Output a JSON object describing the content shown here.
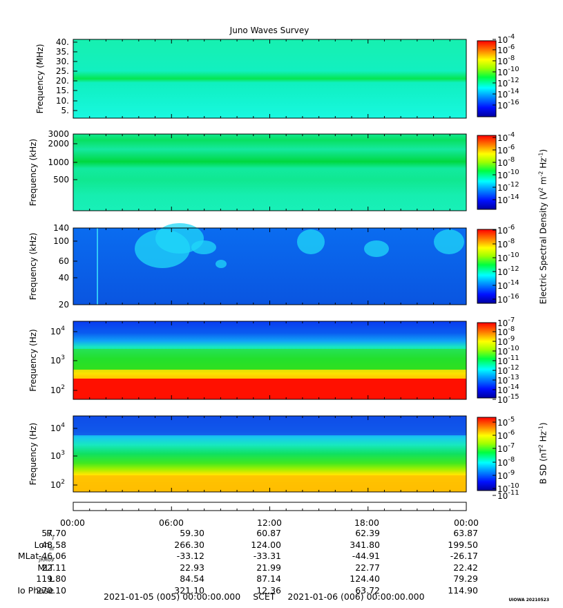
{
  "title": "Juno Waves Survey",
  "chart_data": [
    {
      "type": "heatmap",
      "ylabel": "Frequency (MHz)",
      "yscale": "linear",
      "ylim": [
        3,
        42
      ],
      "y_ticks": [
        "40.",
        "35.",
        "30.",
        "25.",
        "20.",
        "15.",
        "10.",
        "5."
      ],
      "colorbar_ticks": [
        "-4",
        "-6",
        "-8",
        "-10",
        "-12",
        "-14",
        "-16"
      ],
      "clim_log10": [
        -17,
        -4
      ]
    },
    {
      "type": "heatmap",
      "ylabel": "Frequency (kHz)",
      "yscale": "log",
      "ylim": [
        140,
        3300
      ],
      "y_ticks": [
        "3000",
        "2000",
        "1000",
        "500"
      ],
      "colorbar_ticks": [
        "-4",
        "-6",
        "-8",
        "-10",
        "-12",
        "-14"
      ],
      "clim_log10": [
        -15,
        -3
      ]
    },
    {
      "type": "heatmap",
      "ylabel": "Frequency (kHz)",
      "yscale": "log",
      "ylim": [
        20,
        140
      ],
      "y_ticks": [
        "140",
        "100",
        "60",
        "40",
        "20"
      ],
      "colorbar_ticks": [
        "-6",
        "-8",
        "-10",
        "-12",
        "-14",
        "-16"
      ],
      "clim_log10": [
        -16,
        -6
      ]
    },
    {
      "type": "heatmap",
      "ylabel": "Frequency (Hz)",
      "yscale": "log",
      "ylim": [
        50,
        20000
      ],
      "y_ticks": [
        "10",
        "10",
        "10"
      ],
      "y_tick_exponents": [
        "4",
        "3",
        "2"
      ],
      "colorbar_ticks": [
        "-7",
        "-8",
        "-9",
        "-10",
        "-11",
        "-12",
        "-13",
        "-14",
        "-15"
      ],
      "clim_log10": [
        -15,
        -7
      ]
    },
    {
      "type": "heatmap",
      "ylabel": "Frequency (Hz)",
      "yscale": "log",
      "ylim": [
        50,
        20000
      ],
      "y_ticks": [
        "10",
        "10",
        "10"
      ],
      "y_tick_exponents": [
        "4",
        "3",
        "2"
      ],
      "colorbar_ticks": [
        "-5",
        "-6",
        "-7",
        "-8",
        "-9",
        "-10",
        "-11"
      ],
      "clim_log10": [
        -11,
        -4.5
      ]
    }
  ],
  "colorbar_labels": {
    "electric_prefix": "Electric Spectral Density (V",
    "electric_mid": " m",
    "electric_mid2": " Hz",
    "electric_suffix": ")",
    "magnetic_prefix": "B SD (nT",
    "magnetic_mid": " Hz",
    "magnetic_suffix": ")",
    "exp_2": "2",
    "exp_m2": "-2",
    "exp_m1": "-1"
  },
  "time_ticks": [
    "00:00",
    "06:00",
    "12:00",
    "18:00",
    "00:00"
  ],
  "ephemeris": [
    {
      "label": "R",
      "sub": "J",
      "values": [
        "57.70",
        "59.30",
        "60.87",
        "62.39",
        "63.87"
      ]
    },
    {
      "label": "Lon",
      "sub": "III",
      "values": [
        "48.58",
        "266.30",
        "124.00",
        "341.80",
        "199.50"
      ]
    },
    {
      "label": "MLat",
      "sub": "JRM09",
      "values": [
        "-46.06",
        "-33.12",
        "-33.31",
        "-44.91",
        "-26.17"
      ]
    },
    {
      "label": "MLT",
      "sub": "",
      "values": [
        "22.11",
        "22.93",
        "21.99",
        "22.77",
        "22.42"
      ]
    },
    {
      "label": "L",
      "sub": "",
      "values": [
        "119.80",
        "84.54",
        "87.14",
        "124.40",
        "79.29"
      ]
    },
    {
      "label": "Io Phase",
      "sub": "",
      "values": [
        "270.10",
        "321.10",
        "12.36",
        "63.72",
        "114.90"
      ]
    }
  ],
  "footer": {
    "start": "2021-01-05 (005) 00:00:00.000",
    "frame": "SCET",
    "end": "2021-01-06 (006) 00:00:00.000"
  },
  "stamp": "UIOWA 20210523",
  "base_label": "10"
}
